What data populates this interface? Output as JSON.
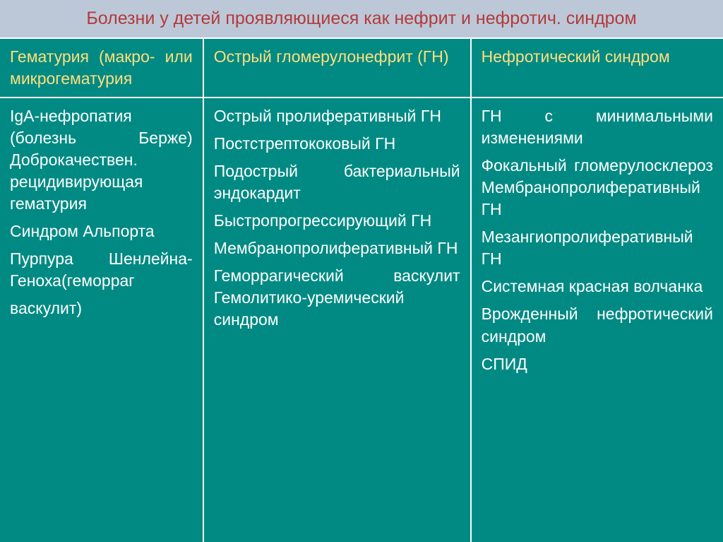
{
  "colors": {
    "slide_bg": "#008a83",
    "title_bg": "#bcc8d8",
    "title_text": "#b33a3a",
    "header_text": "#ffdf7f",
    "body_text": "#ffffff",
    "border": "#ffffff"
  },
  "title": "Болезни у детей проявляющиеся как нефрит и нефротич. синдром",
  "headers": {
    "col1": "Гематурия (макро- или микрогематурия",
    "col2": "Острый гломерулонефрит (ГН)",
    "col3": "Нефротический синдром"
  },
  "body": {
    "col1": [
      "IgА-нефропатия (болезнь Берже) Доброкачествен. рецидивирующая гематурия",
      "Синдром Альпорта",
      "Пурпура Шенлейна-Геноха(геморраг",
      "васкулит)"
    ],
    "col2": [
      "Острый пролиферативный ГН",
      "Постстрептококовый ГН",
      "Подострый бактериальный эндокардит",
      "Быстропрогрессирующий ГН",
      "Мембранопролиферативный ГН",
      "Геморрагический васкулит Гемолитико-уремический синдром"
    ],
    "col3": [
      "ГН с минимальными изменениями",
      "Фокальный гломерулосклероз Мембранопролиферативный ГН",
      "Мезангиопролиферативный ГН",
      "Системная красная волчанка",
      "Врожденный нефротический синдром",
      "СПИД"
    ]
  }
}
